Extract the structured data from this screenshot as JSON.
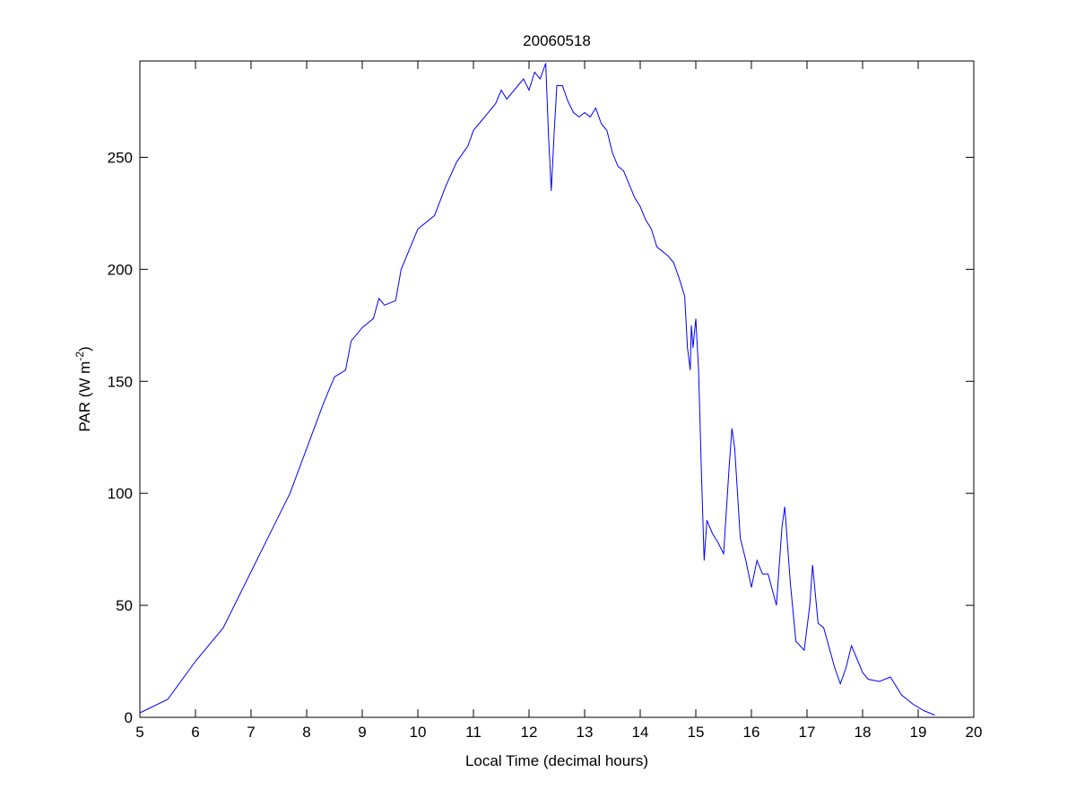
{
  "chart_data": {
    "type": "line",
    "title": "20060518",
    "xlabel": "Local Time (decimal hours)",
    "ylabel": {
      "prefix": "PAR (W m",
      "superscript": "-2",
      "suffix": ")"
    },
    "xlim": [
      5,
      20
    ],
    "ylim": [
      0,
      293
    ],
    "xticks": [
      5,
      6,
      7,
      8,
      9,
      10,
      11,
      12,
      13,
      14,
      15,
      16,
      17,
      18,
      19,
      20
    ],
    "yticks": [
      0,
      50,
      100,
      150,
      200,
      250
    ],
    "grid": false,
    "line_color": "#0000ff",
    "series": [
      {
        "x": [
          5.0,
          5.5,
          6.0,
          6.5,
          7.0,
          7.5,
          7.7,
          8.0,
          8.3,
          8.5,
          8.7,
          8.8,
          9.0,
          9.2,
          9.3,
          9.4,
          9.6,
          9.7,
          9.9,
          10.0,
          10.3,
          10.5,
          10.7,
          10.9,
          11.0,
          11.2,
          11.4,
          11.5,
          11.6,
          11.8,
          11.9,
          12.0,
          12.1,
          12.2,
          12.3,
          12.35,
          12.4,
          12.45,
          12.5,
          12.6,
          12.7,
          12.8,
          12.9,
          13.0,
          13.1,
          13.2,
          13.3,
          13.4,
          13.5,
          13.6,
          13.7,
          13.8,
          13.9,
          14.0,
          14.1,
          14.2,
          14.3,
          14.5,
          14.6,
          14.7,
          14.8,
          14.85,
          14.9,
          14.92,
          14.95,
          15.0,
          15.05,
          15.1,
          15.15,
          15.2,
          15.3,
          15.4,
          15.5,
          15.6,
          15.65,
          15.7,
          15.8,
          15.9,
          16.0,
          16.1,
          16.2,
          16.3,
          16.45,
          16.55,
          16.6,
          16.7,
          16.8,
          16.95,
          17.05,
          17.1,
          17.2,
          17.3,
          17.5,
          17.6,
          17.7,
          17.8,
          17.9,
          18.0,
          18.1,
          18.3,
          18.5,
          18.7,
          18.9,
          19.1,
          19.3
        ],
        "y": [
          2,
          8,
          25,
          40,
          65,
          90,
          100,
          120,
          140,
          152,
          155,
          168,
          174,
          178,
          187,
          184,
          186,
          200,
          212,
          218,
          224,
          237,
          248,
          255,
          262,
          268,
          274,
          280,
          276,
          282,
          285,
          280,
          288,
          285,
          292,
          260,
          235,
          260,
          282,
          282,
          275,
          270,
          268,
          270,
          268,
          272,
          265,
          262,
          252,
          246,
          244,
          238,
          232,
          228,
          222,
          218,
          210,
          206,
          203,
          196,
          188,
          165,
          155,
          175,
          165,
          178,
          155,
          110,
          70,
          88,
          82,
          78,
          73,
          112,
          129,
          120,
          80,
          70,
          58,
          70,
          64,
          64,
          50,
          85,
          94,
          60,
          34,
          30,
          50,
          68,
          42,
          40,
          22,
          15,
          22,
          32,
          26,
          20,
          17,
          16,
          18,
          10,
          6,
          3,
          1
        ]
      }
    ]
  }
}
